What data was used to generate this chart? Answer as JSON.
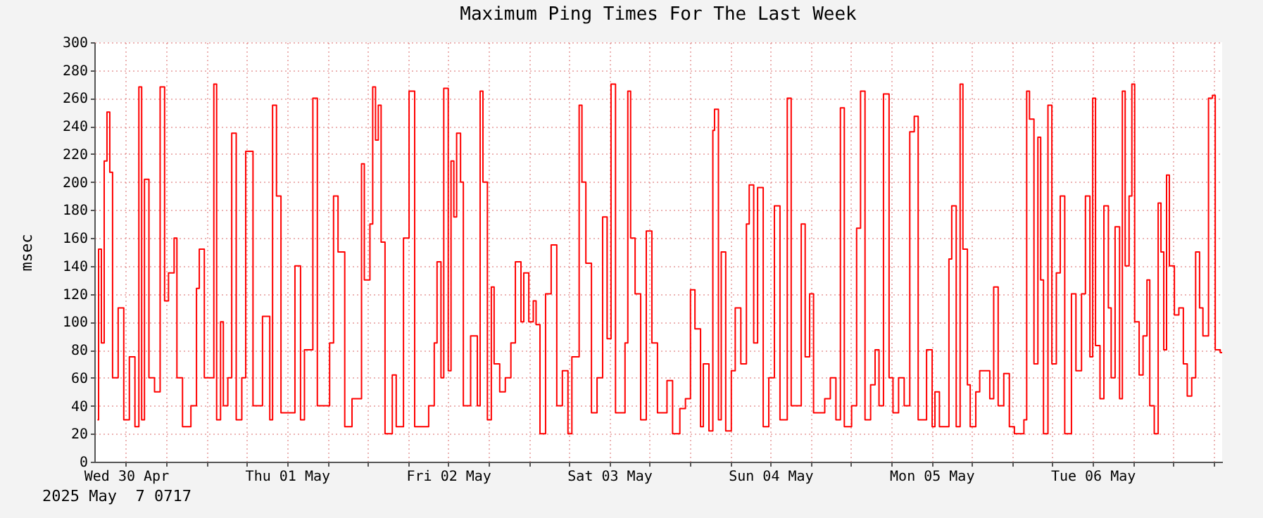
{
  "chart_data": {
    "type": "step",
    "title": "Maximum Ping Times For The Last Week",
    "ylabel": "msec",
    "annotations": [
      "2025 May  7 0717"
    ],
    "xlim": [
      "2025-04-30T07:17",
      "2025-05-07T07:17"
    ],
    "xticks": [
      {
        "value": "2025-04-30T12:00",
        "label": "Wed 30 Apr"
      },
      {
        "value": "2025-04-30T18:00",
        "label": null
      },
      {
        "value": "2025-05-01T00:00",
        "label": null
      },
      {
        "value": "2025-05-01T06:00",
        "label": null
      },
      {
        "value": "2025-05-01T12:00",
        "label": "Thu 01 May"
      },
      {
        "value": "2025-05-01T18:00",
        "label": null
      },
      {
        "value": "2025-05-02T00:00",
        "label": null
      },
      {
        "value": "2025-05-02T06:00",
        "label": null
      },
      {
        "value": "2025-05-02T12:00",
        "label": "Fri 02 May"
      },
      {
        "value": "2025-05-02T18:00",
        "label": null
      },
      {
        "value": "2025-05-03T00:00",
        "label": null
      },
      {
        "value": "2025-05-03T06:00",
        "label": null
      },
      {
        "value": "2025-05-03T12:00",
        "label": "Sat 03 May"
      },
      {
        "value": "2025-05-03T18:00",
        "label": null
      },
      {
        "value": "2025-05-04T00:00",
        "label": null
      },
      {
        "value": "2025-05-04T06:00",
        "label": null
      },
      {
        "value": "2025-05-04T12:00",
        "label": "Sun 04 May"
      },
      {
        "value": "2025-05-04T18:00",
        "label": null
      },
      {
        "value": "2025-05-05T00:00",
        "label": null
      },
      {
        "value": "2025-05-05T06:00",
        "label": null
      },
      {
        "value": "2025-05-05T12:00",
        "label": "Mon 05 May"
      },
      {
        "value": "2025-05-05T18:00",
        "label": null
      },
      {
        "value": "2025-05-06T00:00",
        "label": null
      },
      {
        "value": "2025-05-06T06:00",
        "label": null
      },
      {
        "value": "2025-05-06T12:00",
        "label": "Tue 06 May"
      },
      {
        "value": "2025-05-06T18:00",
        "label": null
      },
      {
        "value": "2025-05-07T00:00",
        "label": null
      },
      {
        "value": "2025-05-07T06:00",
        "label": null
      }
    ],
    "ylim": [
      0,
      300
    ],
    "yticks": [
      0,
      20,
      40,
      60,
      80,
      100,
      120,
      140,
      160,
      180,
      200,
      220,
      240,
      260,
      280,
      300
    ],
    "grid": true,
    "series": [
      {
        "color": "#ff0000",
        "x": [
          "2025-04-30T07:45",
          "2025-04-30T07:55",
          "2025-04-30T08:20",
          "2025-04-30T08:45",
          "2025-04-30T09:10",
          "2025-04-30T09:35",
          "2025-04-30T10:00",
          "2025-04-30T10:50",
          "2025-04-30T11:40",
          "2025-04-30T12:30",
          "2025-04-30T13:20",
          "2025-04-30T13:55",
          "2025-04-30T14:20",
          "2025-04-30T14:45",
          "2025-04-30T15:25",
          "2025-04-30T16:15",
          "2025-04-30T17:05",
          "2025-04-30T17:45",
          "2025-04-30T18:20",
          "2025-04-30T19:10",
          "2025-04-30T19:35",
          "2025-04-30T20:25",
          "2025-04-30T21:40",
          "2025-04-30T22:30",
          "2025-04-30T22:55",
          "2025-04-30T23:40",
          "2025-05-01T00:40",
          "2025-05-01T01:05",
          "2025-05-01T01:30",
          "2025-05-01T02:05",
          "2025-05-01T02:30",
          "2025-05-01T03:10",
          "2025-05-01T03:45",
          "2025-05-01T04:25",
          "2025-05-01T05:15",
          "2025-05-01T05:50",
          "2025-05-01T06:55",
          "2025-05-01T08:20",
          "2025-05-01T09:25",
          "2025-05-01T09:50",
          "2025-05-01T10:25",
          "2025-05-01T11:05",
          "2025-05-01T13:10",
          "2025-05-01T14:00",
          "2025-05-01T14:35",
          "2025-05-01T15:50",
          "2025-05-01T16:30",
          "2025-05-01T18:20",
          "2025-05-01T18:55",
          "2025-05-01T19:35",
          "2025-05-01T20:35",
          "2025-05-01T21:40",
          "2025-05-01T23:05",
          "2025-05-01T23:30",
          "2025-05-02T00:20",
          "2025-05-02T00:45",
          "2025-05-02T01:10",
          "2025-05-02T01:35",
          "2025-05-02T02:00",
          "2025-05-02T02:35",
          "2025-05-02T03:40",
          "2025-05-02T04:15",
          "2025-05-02T05:20",
          "2025-05-02T06:10",
          "2025-05-02T07:00",
          "2025-05-02T09:05",
          "2025-05-02T09:55",
          "2025-05-02T10:20",
          "2025-05-02T10:55",
          "2025-05-02T11:20",
          "2025-05-02T12:00",
          "2025-05-02T12:25",
          "2025-05-02T12:50",
          "2025-05-02T13:15",
          "2025-05-02T13:50",
          "2025-05-02T14:15",
          "2025-05-02T15:20",
          "2025-05-02T16:20",
          "2025-05-02T16:45",
          "2025-05-02T17:10",
          "2025-05-02T17:50",
          "2025-05-02T18:25",
          "2025-05-02T18:50",
          "2025-05-02T19:40",
          "2025-05-02T20:30",
          "2025-05-02T21:20",
          "2025-05-02T22:00",
          "2025-05-02T22:50",
          "2025-05-02T23:15",
          "2025-05-03T00:00",
          "2025-05-03T00:40",
          "2025-05-03T01:05",
          "2025-05-03T01:40",
          "2025-05-03T02:30",
          "2025-05-03T03:20",
          "2025-05-03T04:10",
          "2025-05-03T05:00",
          "2025-05-03T05:50",
          "2025-05-03T06:25",
          "2025-05-03T07:30",
          "2025-05-03T07:55",
          "2025-05-03T08:30",
          "2025-05-03T09:20",
          "2025-05-03T10:10",
          "2025-05-03T11:00",
          "2025-05-03T11:40",
          "2025-05-03T12:15",
          "2025-05-03T12:55",
          "2025-05-03T14:20",
          "2025-05-03T14:45",
          "2025-05-03T15:10",
          "2025-05-03T15:50",
          "2025-05-03T16:40",
          "2025-05-03T17:30",
          "2025-05-03T18:20",
          "2025-05-03T19:10",
          "2025-05-03T20:35",
          "2025-05-03T21:25",
          "2025-05-03T22:30",
          "2025-05-03T23:20",
          "2025-05-04T00:05",
          "2025-05-04T00:45",
          "2025-05-04T01:35",
          "2025-05-04T02:00",
          "2025-05-04T02:50",
          "2025-05-04T03:25",
          "2025-05-04T03:40",
          "2025-05-04T04:15",
          "2025-05-04T04:40",
          "2025-05-04T05:20",
          "2025-05-04T06:10",
          "2025-05-04T06:45",
          "2025-05-04T07:35",
          "2025-05-04T08:25",
          "2025-05-04T08:50",
          "2025-05-04T09:30",
          "2025-05-04T10:05",
          "2025-05-04T10:55",
          "2025-05-04T11:45",
          "2025-05-04T12:35",
          "2025-05-04T13:25",
          "2025-05-04T14:30",
          "2025-05-04T15:05",
          "2025-05-04T16:35",
          "2025-05-04T17:10",
          "2025-05-04T17:50",
          "2025-05-04T18:25",
          "2025-05-04T20:05",
          "2025-05-04T20:55",
          "2025-05-04T21:45",
          "2025-05-04T22:25",
          "2025-05-04T23:00",
          "2025-05-05T00:05",
          "2025-05-05T00:50",
          "2025-05-05T01:25",
          "2025-05-05T02:05",
          "2025-05-05T02:55",
          "2025-05-05T03:35",
          "2025-05-05T04:10",
          "2025-05-05T04:50",
          "2025-05-05T05:40",
          "2025-05-05T06:15",
          "2025-05-05T07:05",
          "2025-05-05T07:55",
          "2025-05-05T08:45",
          "2025-05-05T09:25",
          "2025-05-05T10:00",
          "2025-05-05T11:15",
          "2025-05-05T12:05",
          "2025-05-05T12:30",
          "2025-05-05T13:10",
          "2025-05-05T14:35",
          "2025-05-05T15:00",
          "2025-05-05T15:40",
          "2025-05-05T16:15",
          "2025-05-05T16:40",
          "2025-05-05T17:20",
          "2025-05-05T17:45",
          "2025-05-05T18:35",
          "2025-05-05T19:10",
          "2025-05-05T20:40",
          "2025-05-05T21:15",
          "2025-05-05T21:55",
          "2025-05-05T22:45",
          "2025-05-05T23:35",
          "2025-05-06T00:20",
          "2025-05-06T01:45",
          "2025-05-06T02:10",
          "2025-05-06T02:35",
          "2025-05-06T03:15",
          "2025-05-06T03:50",
          "2025-05-06T04:15",
          "2025-05-06T04:40",
          "2025-05-06T05:20",
          "2025-05-06T05:55",
          "2025-05-06T06:35",
          "2025-05-06T07:10",
          "2025-05-06T07:50",
          "2025-05-06T08:50",
          "2025-05-06T09:30",
          "2025-05-06T10:20",
          "2025-05-06T10:55",
          "2025-05-06T11:35",
          "2025-05-06T12:00",
          "2025-05-06T12:25",
          "2025-05-06T13:05",
          "2025-05-06T13:40",
          "2025-05-06T14:20",
          "2025-05-06T14:45",
          "2025-05-06T15:20",
          "2025-05-06T16:00",
          "2025-05-06T16:25",
          "2025-05-06T16:50",
          "2025-05-06T17:25",
          "2025-05-06T17:50",
          "2025-05-06T18:15",
          "2025-05-06T18:55",
          "2025-05-06T19:30",
          "2025-05-06T20:05",
          "2025-05-06T20:30",
          "2025-05-06T21:10",
          "2025-05-06T21:45",
          "2025-05-06T22:10",
          "2025-05-06T22:35",
          "2025-05-06T23:00",
          "2025-05-06T23:25",
          "2025-05-07T00:10",
          "2025-05-07T00:50",
          "2025-05-07T01:30",
          "2025-05-07T02:05",
          "2025-05-07T02:45",
          "2025-05-07T03:20",
          "2025-05-07T03:55",
          "2025-05-07T04:25",
          "2025-05-07T05:15",
          "2025-05-07T05:50",
          "2025-05-07T06:15",
          "2025-05-07T07:00",
          "2025-05-07T07:17"
        ],
        "values": [
          30,
          152,
          85,
          215,
          250,
          207,
          60,
          110,
          30,
          75,
          25,
          268,
          30,
          202,
          60,
          50,
          268,
          115,
          135,
          160,
          60,
          25,
          40,
          124,
          152,
          60,
          60,
          270,
          30,
          100,
          40,
          60,
          235,
          30,
          60,
          222,
          40,
          104,
          30,
          255,
          190,
          35,
          140,
          30,
          80,
          260,
          40,
          85,
          190,
          150,
          25,
          45,
          213,
          130,
          170,
          268,
          230,
          255,
          157,
          20,
          62,
          25,
          160,
          265,
          25,
          40,
          85,
          143,
          60,
          267,
          65,
          215,
          175,
          235,
          200,
          40,
          90,
          40,
          265,
          200,
          30,
          125,
          70,
          50,
          60,
          85,
          143,
          100,
          135,
          100,
          115,
          98,
          20,
          120,
          155,
          40,
          65,
          20,
          75,
          255,
          200,
          142,
          35,
          60,
          175,
          88,
          270,
          35,
          85,
          265,
          160,
          120,
          30,
          165,
          85,
          35,
          58,
          20,
          38,
          45,
          123,
          95,
          25,
          70,
          22,
          237,
          252,
          30,
          150,
          22,
          65,
          110,
          70,
          170,
          198,
          85,
          196,
          25,
          60,
          183,
          30,
          260,
          40,
          170,
          75,
          120,
          35,
          45,
          60,
          30,
          253,
          25,
          40,
          167,
          265,
          30,
          55,
          80,
          40,
          263,
          60,
          35,
          60,
          40,
          236,
          247,
          30,
          80,
          25,
          50,
          25,
          145,
          183,
          25,
          270,
          152,
          55,
          25,
          50,
          65,
          45,
          125,
          40,
          63,
          25,
          20,
          30,
          265,
          245,
          70,
          232,
          130,
          20,
          255,
          70,
          135,
          190,
          20,
          120,
          65,
          120,
          190,
          75,
          260,
          83,
          45,
          183,
          110,
          60,
          168,
          45,
          265,
          140,
          190,
          270,
          100,
          62,
          90,
          130,
          40,
          20,
          185,
          150,
          80,
          205,
          140,
          105,
          110,
          70,
          47,
          60,
          150,
          110,
          90,
          260,
          262,
          80,
          78,
          78
        ]
      }
    ]
  }
}
